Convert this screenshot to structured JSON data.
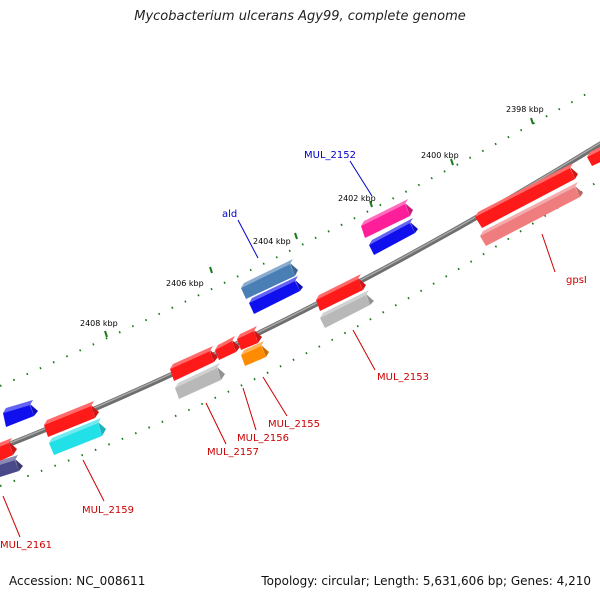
{
  "title": "Mycobacterium ulcerans Agy99, complete genome",
  "footer": {
    "accession": "Accession: NC_008611",
    "summary": "Topology: circular; Length: 5,631,606 bp; Genes: 4,210"
  },
  "kbp_labels": [
    "2398 kbp",
    "2400 kbp",
    "2402 kbp",
    "2404 kbp",
    "2406 kbp",
    "2408 kbp"
  ],
  "gene_labels": [
    {
      "text": "MUL_2152",
      "color": "#0000cc"
    },
    {
      "text": "ald",
      "color": "#0000cc"
    },
    {
      "text": "gpsI",
      "color": "#cc0000"
    },
    {
      "text": "MUL_2153",
      "color": "#cc0000"
    },
    {
      "text": "MUL_2155",
      "color": "#cc0000"
    },
    {
      "text": "MUL_2156",
      "color": "#cc0000"
    },
    {
      "text": "MUL_2157",
      "color": "#cc0000"
    },
    {
      "text": "MUL_2159",
      "color": "#cc0000"
    },
    {
      "text": "MUL_2161",
      "color": "#cc0000"
    }
  ],
  "colors": {
    "backbone": "#8a8a8a",
    "tick": "#1a7a1a",
    "red": "#ff1a1a",
    "blue": "#1010ee",
    "steelblue": "#4a7fb5",
    "pink": "#ff1e9a",
    "gray": "#b8b8b8",
    "salmon": "#f07d7d",
    "cyan": "#22e0e8",
    "orange": "#ff8c00",
    "navy": "#4a4a8a"
  }
}
